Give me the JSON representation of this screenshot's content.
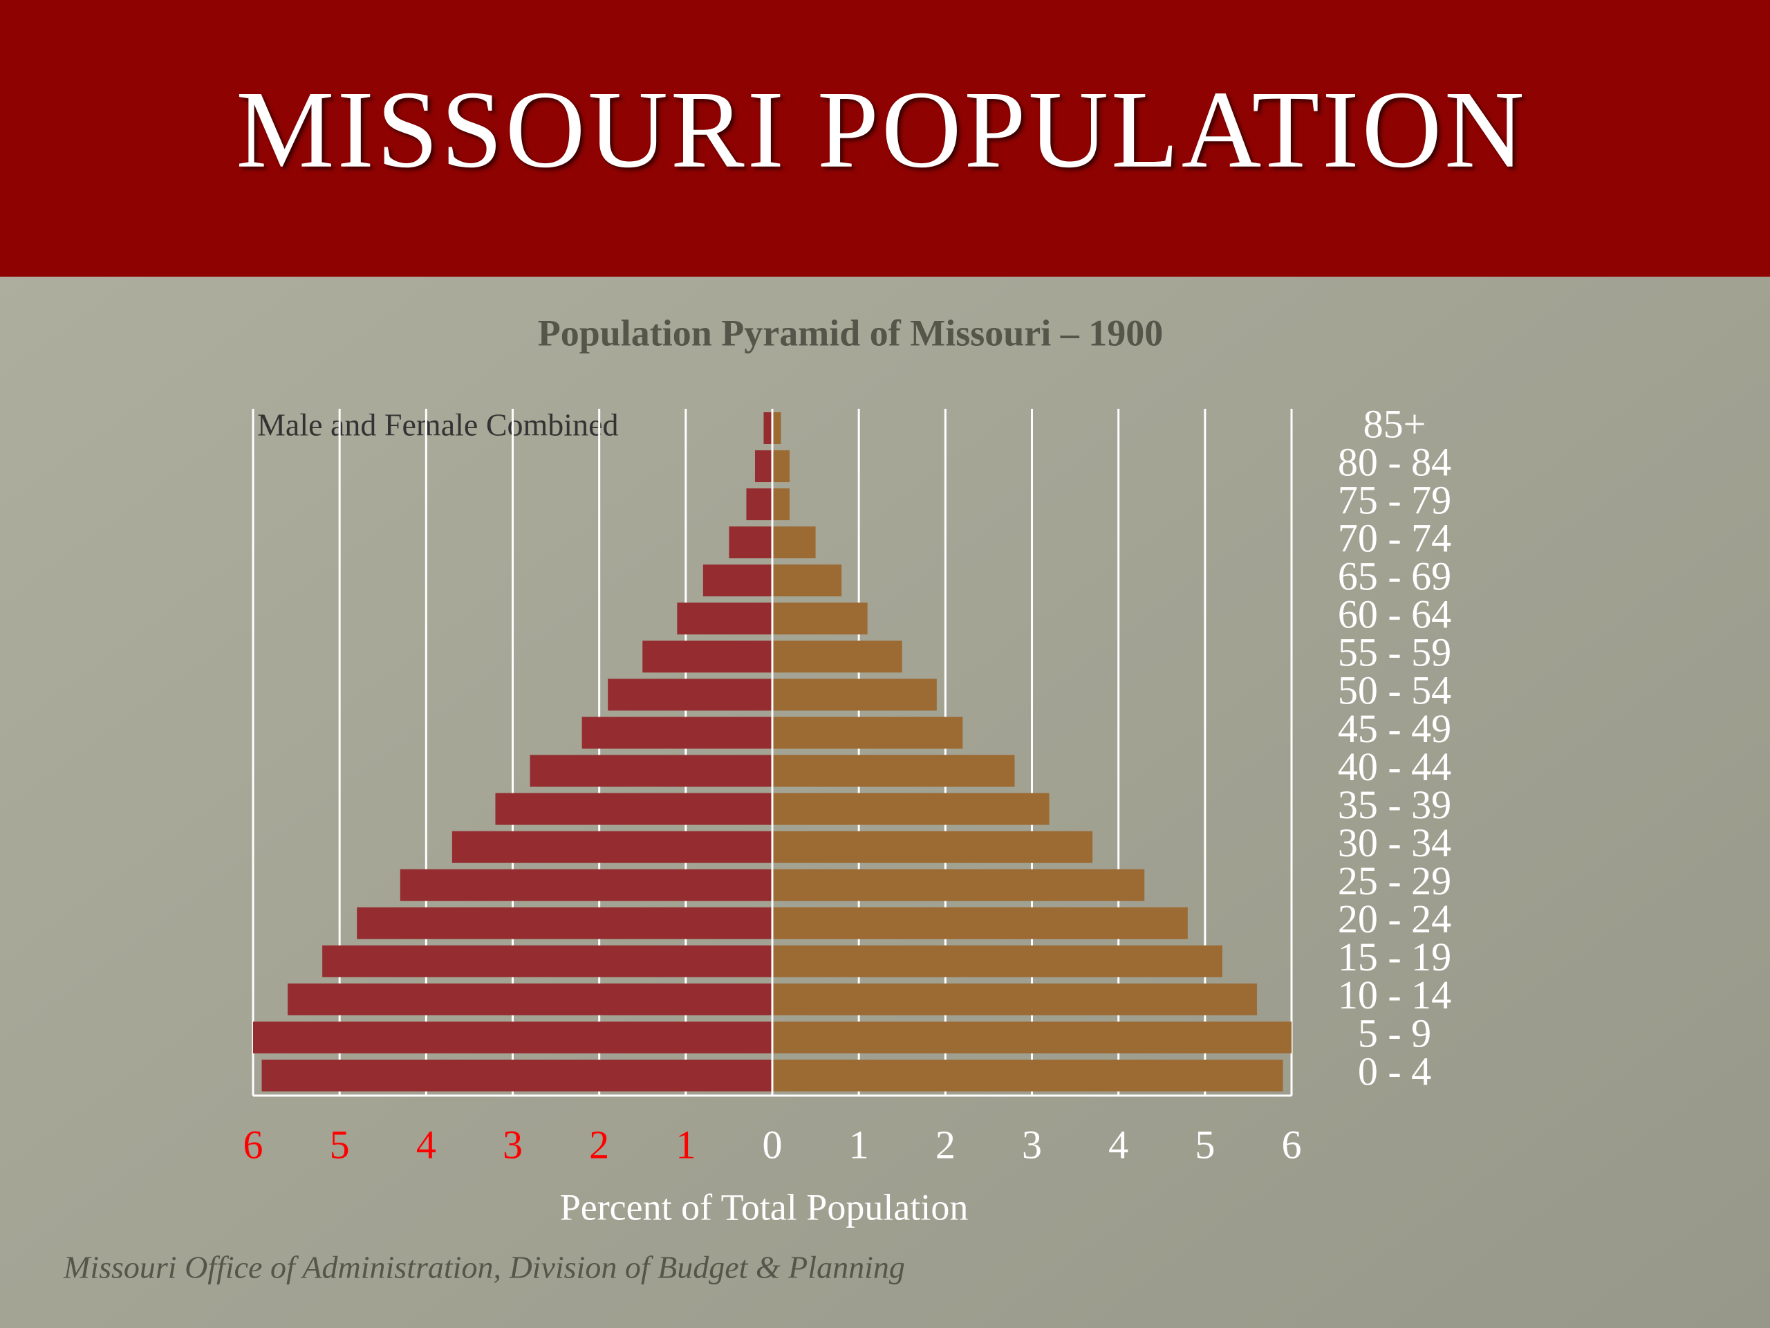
{
  "slide_title": "MISSOURI POPULATION",
  "source": "Missouri Office of  Administration, Division of  Budget & Planning",
  "chart_data": {
    "type": "pyramid",
    "title": "Population Pyramid of Missouri – 1900",
    "annotation": "Male and Female Combined",
    "x_label": "Percent of  Total Population",
    "categories": [
      "85+",
      "80 - 84",
      "75 - 79",
      "70 - 74",
      "65 - 69",
      "60 - 64",
      "55 - 59",
      "50 - 54",
      "45 - 49",
      "40 - 44",
      "35 - 39",
      "30 - 34",
      "25 - 29",
      "20 - 24",
      "15 - 19",
      "10 - 14",
      "5 - 9",
      "0 - 4"
    ],
    "series": [
      {
        "side": "left",
        "color": "#952d30",
        "values": [
          0.1,
          0.2,
          0.3,
          0.5,
          0.8,
          1.1,
          1.5,
          1.9,
          2.2,
          2.8,
          3.2,
          3.7,
          4.3,
          4.8,
          5.2,
          5.6,
          6.0,
          5.9
        ]
      },
      {
        "side": "right",
        "color": "#9c6a33",
        "values": [
          0.1,
          0.2,
          0.2,
          0.5,
          0.8,
          1.1,
          1.5,
          1.9,
          2.2,
          2.8,
          3.2,
          3.7,
          4.3,
          4.8,
          5.2,
          5.6,
          6.0,
          5.9
        ]
      }
    ],
    "xlim": [
      0,
      6
    ],
    "xticks": [
      0,
      1,
      2,
      3,
      4,
      5,
      6
    ],
    "left_xticks": [
      6,
      5,
      4,
      3,
      2,
      1
    ],
    "left_tick_color": "#ff0000",
    "grid": true
  }
}
